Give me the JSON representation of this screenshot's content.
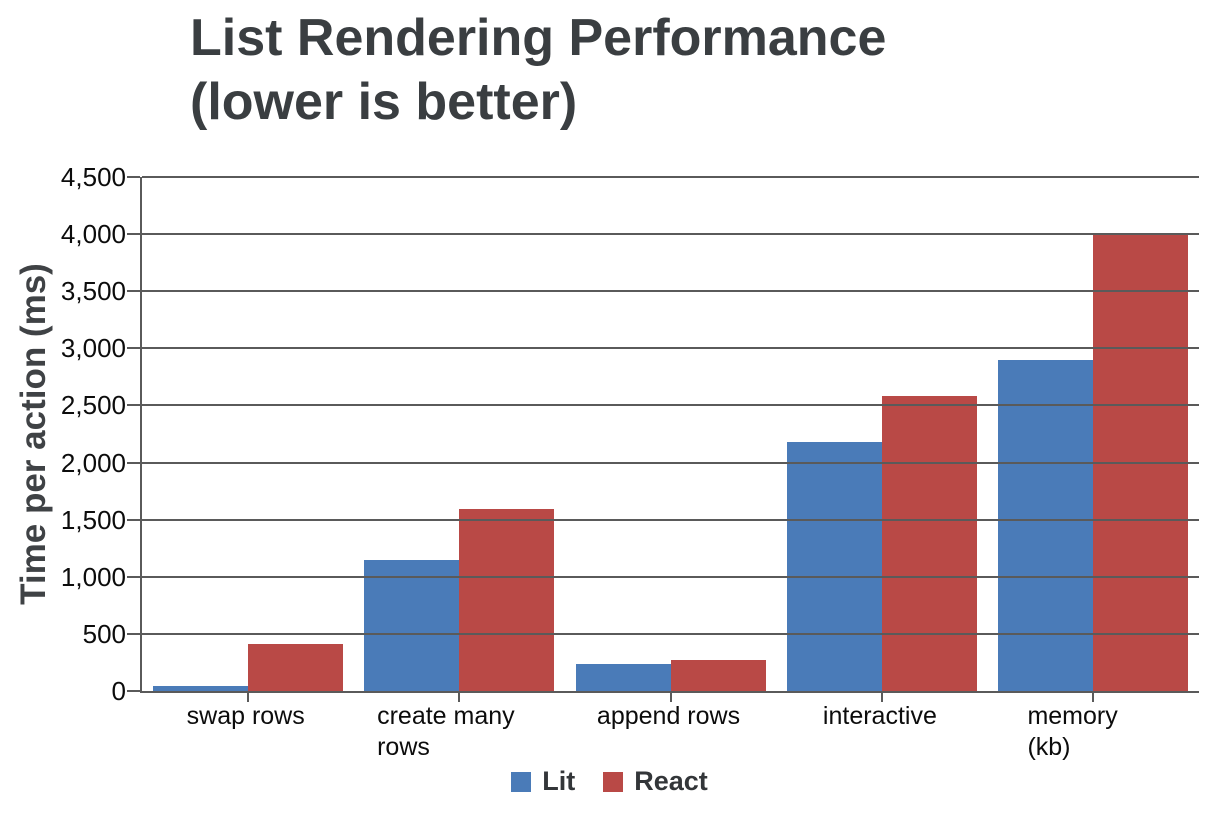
{
  "title": {
    "line1": "List Rendering Performance",
    "line2": "(lower is better)"
  },
  "chart_data": {
    "type": "bar",
    "title": "List Rendering Performance (lower is better)",
    "categories": [
      "swap rows",
      "create many rows",
      "append rows",
      "interactive",
      "memory (kb)"
    ],
    "series": [
      {
        "name": "Lit",
        "color": "#4a7bb8",
        "values": [
          45,
          1150,
          235,
          2180,
          2900
        ]
      },
      {
        "name": "React",
        "color": "#b94946",
        "values": [
          410,
          1595,
          270,
          2580,
          4000
        ]
      }
    ],
    "xlabel": "",
    "ylabel": "Time per action (ms)",
    "ylim": [
      0,
      4500
    ],
    "ytick_step": 500,
    "ytick_labels": [
      "0",
      "500",
      "1,000",
      "1,500",
      "2,000",
      "2,500",
      "3,000",
      "3,500",
      "4,000",
      "4,500"
    ],
    "grid": true,
    "legend_position": "bottom"
  },
  "colors": {
    "grid": "#5a5a5a",
    "title_text": "#3a3e41",
    "tick_text": "#0c0c0c"
  }
}
